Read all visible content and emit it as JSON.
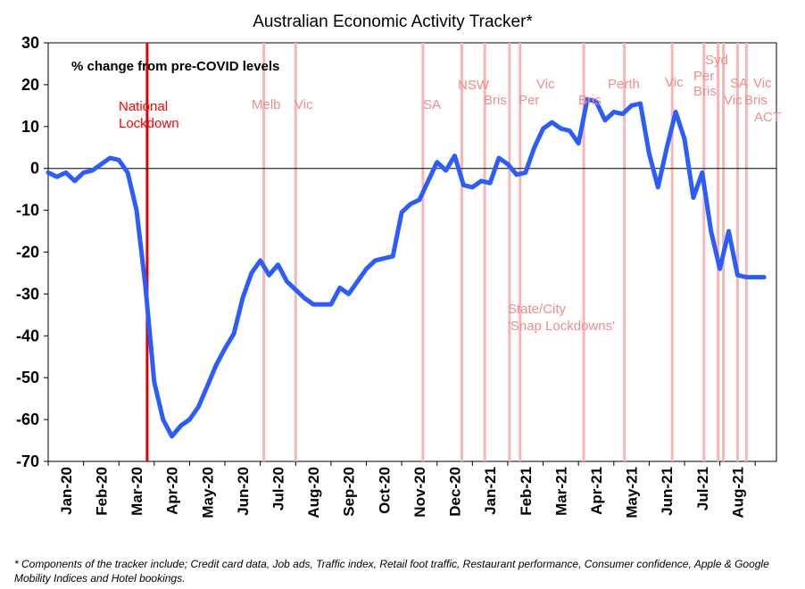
{
  "chart_data": {
    "type": "line",
    "title": "Australian Economic Activity Tracker*",
    "subtitle": "%  change from pre-COVID levels",
    "ylim": [
      -70,
      30
    ],
    "yticks": [
      30,
      20,
      10,
      0,
      -10,
      -20,
      -30,
      -40,
      -50,
      -60,
      -70
    ],
    "xlim": [
      0,
      20.6
    ],
    "x_tick_labels": [
      "Jan-20",
      "Feb-20",
      "Mar-20",
      "Apr-20",
      "May-20",
      "Jun-20",
      "Jul-20",
      "Aug-20",
      "Sep-20",
      "Oct-20",
      "Nov-20",
      "Dec-20",
      "Jan-21",
      "Feb-21",
      "Mar-21",
      "Apr-21",
      "May-21",
      "Jun-21",
      "Jul-21",
      "Aug-21"
    ],
    "grid": false,
    "series": [
      {
        "color": "#2a5cff",
        "x": [
          0,
          0.25,
          0.5,
          0.75,
          1,
          1.25,
          1.5,
          1.75,
          2,
          2.25,
          2.5,
          2.75,
          3,
          3.25,
          3.5,
          3.75,
          4,
          4.25,
          4.5,
          4.75,
          5,
          5.25,
          5.5,
          5.75,
          6,
          6.25,
          6.5,
          6.75,
          7,
          7.25,
          7.5,
          7.75,
          8,
          8.25,
          8.5,
          8.75,
          9,
          9.25,
          9.5,
          9.75,
          10,
          10.25,
          10.5,
          10.75,
          11,
          11.25,
          11.5,
          11.75,
          12,
          12.25,
          12.5,
          12.75,
          13,
          13.25,
          13.5,
          13.75,
          14,
          14.25,
          14.5,
          14.75,
          15,
          15.25,
          15.5,
          15.75,
          16,
          16.25,
          16.5,
          16.75,
          17,
          17.25,
          17.5,
          17.75,
          18,
          18.25,
          18.5,
          18.75,
          19,
          19.25,
          19.5,
          19.75,
          20,
          20.25
        ],
        "values": [
          -1,
          -2,
          -1,
          -3,
          -1,
          -0.5,
          1,
          2.5,
          2,
          -1,
          -10,
          -28,
          -51,
          -60,
          -64,
          -61.5,
          -60,
          -57,
          -52,
          -47,
          -43,
          -39.5,
          -31,
          -25,
          -22,
          -25.5,
          -23,
          -27,
          -29,
          -31,
          -32.5,
          -32.5,
          -32.5,
          -28.5,
          -30,
          -27,
          -24,
          -22,
          -21.5,
          -21,
          -10.5,
          -8.5,
          -7.5,
          -3,
          1.5,
          -0.5,
          3,
          -4,
          -4.5,
          -3,
          -3.5,
          2.5,
          1,
          -1.5,
          -1,
          5,
          9.5,
          11,
          9.5,
          9,
          6,
          16.5,
          16,
          11.5,
          13.5,
          13,
          15,
          15.5,
          3.5,
          -4.5,
          5,
          13.5,
          7,
          -7,
          -1,
          -15,
          -24,
          -15,
          -25.5,
          -26,
          -26,
          -26
        ]
      }
    ],
    "lockdown_lines": {
      "national_x": 2.8,
      "snap_x": [
        6.1,
        7,
        10.6,
        11.7,
        12.35,
        13.05,
        13.35,
        15.15,
        16.3,
        17.65,
        18.55,
        18.95,
        19.1,
        19.5,
        19.75
      ]
    },
    "annotations": {
      "national": [
        "National",
        "Lockdown"
      ],
      "snap": {
        "melb": "Melb",
        "vic_aug": "Vic",
        "sa": "SA",
        "nsw": "NSW",
        "bris_jan": "Bris",
        "vic_feb": "Vic",
        "per_feb": "Per",
        "bris_apr": "Bris",
        "perth": "Perth",
        "vic_jun": "Vic",
        "syd": "Syd",
        "per_jul": "Per",
        "bris_jul": "Bris",
        "vic_jul": "Vic",
        "sa_aug": "SA",
        "vic_aug21": "Vic",
        "bris_aug": "Bris",
        "act": "ACT"
      },
      "state_city": [
        "State/City",
        "'Snap Lockdowns'"
      ]
    }
  },
  "footnote": "* Components of the tracker include; Credit card data, Job ads, Traffic index, Retail foot traffic, Restaurant performance, Consumer confidence, Apple & Google Mobility Indices and Hotel bookings."
}
